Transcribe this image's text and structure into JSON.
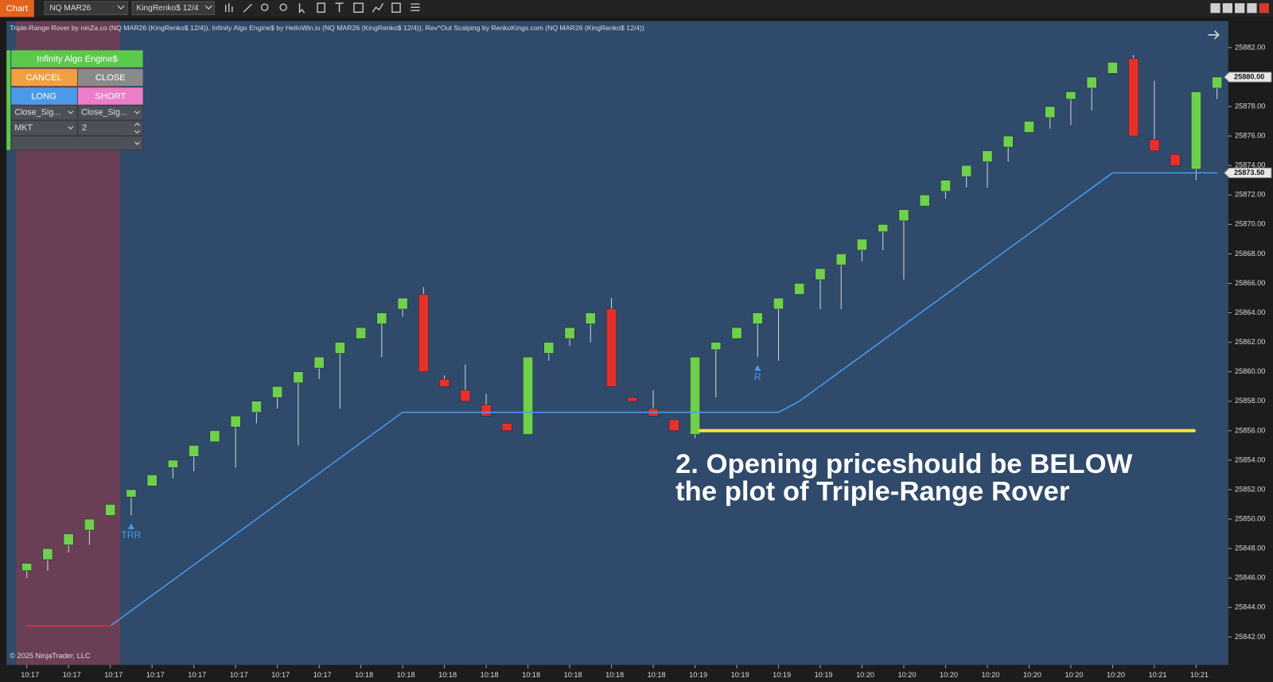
{
  "toolbar": {
    "tab": "Chart",
    "instrument": "NQ MAR26",
    "bar_type": "KingRenko$ 12/4"
  },
  "indicators_label": "Triple-Range Rover by ninZa.co (NQ MAR26 (KingRenko$ 12/4)), Infinity Algo Engine$ by HelloWin.io (NQ MAR26 (KingRenko$ 12/4)), Rev^Out Scalping by RenkoKings.com (NQ MAR26 (KingRenko$ 12/4))",
  "panel": {
    "title": "Infinity Algo Engine$",
    "buttons": [
      "CANCEL",
      "CLOSE",
      "LONG",
      "SHORT"
    ],
    "dropdowns": [
      "Close_Sig...",
      "Close_Sig...",
      "MKT"
    ],
    "quantity": "2"
  },
  "copyright": "© 2025 NinjaTrader, LLC",
  "annotation": {
    "lines": [
      "2. Opening priceshould be BELOW",
      "the plot of Triple-Range Rover"
    ]
  },
  "chart_data": {
    "type": "candlestick",
    "categories": [
      "10:17",
      null,
      "10:17",
      null,
      "10:17",
      null,
      "10:17",
      null,
      "10:17",
      null,
      "10:17",
      null,
      "10:17",
      null,
      "10:17",
      null,
      "10:18",
      null,
      "10:18",
      null,
      "10:18",
      null,
      "10:18",
      null,
      "10:18",
      null,
      "10:18",
      null,
      "10:18",
      null,
      "10:18",
      null,
      "10:19",
      null,
      "10:19",
      null,
      "10:19",
      null,
      "10:19",
      null,
      "10:20",
      null,
      "10:20",
      null,
      "10:20",
      null,
      "10:20",
      null,
      "10:20",
      null,
      "10:20",
      null,
      "10:20",
      null,
      "10:21",
      null,
      "10:21",
      null
    ],
    "open": [
      25846.5,
      25847.25,
      25848.25,
      25849.25,
      25850.25,
      25851.5,
      25852.25,
      25853.5,
      25854.25,
      25855.25,
      25856.25,
      25857.25,
      25858.25,
      25859.25,
      25860.25,
      25861.25,
      25862.25,
      25863.25,
      25864.25,
      25865.25,
      25859.5,
      25858.75,
      25857.75,
      25856.5,
      25855.75,
      25861.25,
      25862.25,
      25863.25,
      25864.25,
      25858.25,
      25857.5,
      25856.75,
      25855.75,
      25861.5,
      25862.25,
      25863.25,
      25864.25,
      25865.25,
      25866.25,
      25867.25,
      25868.25,
      25869.5,
      25870.25,
      25871.25,
      25872.25,
      25873.25,
      25874.25,
      25875.25,
      25876.25,
      25877.25,
      25878.5,
      25879.25,
      25880.25,
      25881.25,
      25875.75,
      25874.75,
      25873.75,
      25879.25
    ],
    "high": [
      25847,
      25848,
      25849,
      25850,
      25851,
      25852,
      25853,
      25854,
      25855,
      25856,
      25857,
      25858,
      25859,
      25860,
      25861,
      25862,
      25863,
      25864,
      25865,
      25865.75,
      25859.75,
      25860.5,
      25858.5,
      25856.5,
      25861,
      25862,
      25863,
      25864,
      25865,
      25858.25,
      25858.75,
      25856.75,
      25861,
      25862,
      25863,
      25864,
      25865,
      25866,
      25867,
      25868,
      25869,
      25870,
      25871,
      25872,
      25873,
      25874,
      25875,
      25876,
      25877,
      25878,
      25879,
      25880,
      25881,
      25881.5,
      25879.75,
      25874.75,
      25879,
      25880
    ],
    "low": [
      25846,
      25846.5,
      25847.75,
      25848.25,
      25850.25,
      25850.25,
      25852.25,
      25852.75,
      25853.25,
      25855.25,
      25853.5,
      25856.5,
      25857.5,
      25855,
      25859.5,
      25857.5,
      25862.25,
      25861,
      25863.75,
      25860,
      25859,
      25858,
      25857,
      25856,
      25855.75,
      25860.75,
      25861.75,
      25862,
      25859,
      25858,
      25857,
      25856,
      25855.5,
      25858.25,
      25862.25,
      25861,
      25860.75,
      25865.25,
      25864.25,
      25864.25,
      25867.5,
      25868.25,
      25866.25,
      25871.25,
      25871.75,
      25872.5,
      25872.5,
      25874.25,
      25876.25,
      25876.5,
      25876.75,
      25877.75,
      25880.25,
      25876,
      25875,
      25874,
      25873,
      25878.5
    ],
    "close": [
      25847,
      25848,
      25849,
      25850,
      25851,
      25852,
      25853,
      25854,
      25855,
      25856,
      25857,
      25858,
      25859,
      25860,
      25861,
      25862,
      25863,
      25864,
      25865,
      25860,
      25859,
      25858,
      25857,
      25856,
      25861,
      25862,
      25863,
      25864,
      25859,
      25858,
      25857,
      25856,
      25861,
      25862,
      25863,
      25864,
      25865,
      25866,
      25867,
      25868,
      25869,
      25870,
      25871,
      25872,
      25873,
      25874,
      25875,
      25876,
      25877,
      25878,
      25879,
      25880,
      25881,
      25876,
      25875,
      25874,
      25879,
      25880
    ],
    "up_color": "#6fd04c",
    "down_color": "#e8302a",
    "lines": [
      {
        "color": "#4a9bf0",
        "x": [
          4,
          18,
          36,
          37,
          52,
          57
        ],
        "values": [
          25842.75,
          25857.25,
          25857.25,
          25858,
          25873.5,
          25873.5
        ]
      },
      {
        "color": "#e0303a",
        "x": [
          0,
          4
        ],
        "values": [
          25842.75,
          25842.75
        ]
      },
      {
        "color": "#f2e23c",
        "x": [
          32.25,
          55.9
        ],
        "values": [
          25856,
          25856
        ]
      }
    ],
    "signals": [
      {
        "label": "TRR",
        "x": 5
      },
      {
        "label": "R",
        "x": 35
      }
    ],
    "price_markers": [
      {
        "value": 25880,
        "label": "25880.00"
      },
      {
        "value": 25873.5,
        "label": "25873.50"
      }
    ],
    "ylim": [
      25840.1,
      25883.8
    ],
    "yticks": [
      {
        "value": 25842,
        "label": "25842.00"
      },
      {
        "value": 25844,
        "label": "25844.00"
      },
      {
        "value": 25846,
        "label": "25846.00"
      },
      {
        "value": 25848,
        "label": "25848.00"
      },
      {
        "value": 25850,
        "label": "25850.00"
      },
      {
        "value": 25852,
        "label": "25852.00"
      },
      {
        "value": 25854,
        "label": "25854.00"
      },
      {
        "value": 25856,
        "label": "25856.00"
      },
      {
        "value": 25858,
        "label": "25858.00"
      },
      {
        "value": 25860,
        "label": "25860.00"
      },
      {
        "value": 25862,
        "label": "25862.00"
      },
      {
        "value": 25864,
        "label": "25864.00"
      },
      {
        "value": 25866,
        "label": "25866.00"
      },
      {
        "value": 25868,
        "label": "25868.00"
      },
      {
        "value": 25870,
        "label": "25870.00"
      },
      {
        "value": 25872,
        "label": "25872.00"
      },
      {
        "value": 25874,
        "label": "25874.00"
      },
      {
        "value": 25876,
        "label": "25876.00"
      },
      {
        "value": 25878,
        "label": "25878.00"
      },
      {
        "value": 25880,
        "label": "25880.00"
      },
      {
        "value": 25882,
        "label": "25882.00"
      }
    ]
  }
}
